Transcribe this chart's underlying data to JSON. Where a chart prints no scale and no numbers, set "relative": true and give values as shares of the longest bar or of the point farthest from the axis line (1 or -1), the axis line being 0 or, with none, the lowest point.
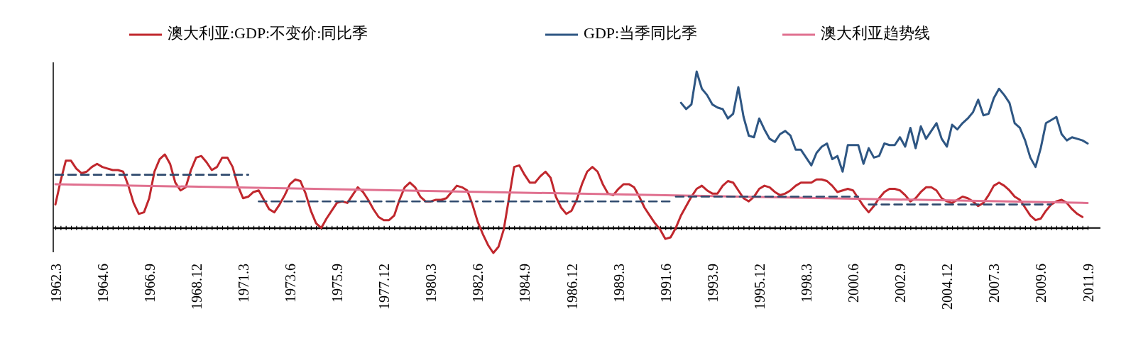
{
  "chart_data": {
    "type": "line",
    "relative": true,
    "legend": "top",
    "tick_labels": "x",
    "categories": [
      "1962.3",
      null,
      null,
      null,
      null,
      null,
      null,
      null,
      null,
      "1964.6",
      null,
      null,
      null,
      null,
      null,
      null,
      null,
      null,
      "1966.9",
      null,
      null,
      null,
      null,
      null,
      null,
      null,
      null,
      "1968.12",
      null,
      null,
      null,
      null,
      null,
      null,
      null,
      null,
      "1971.3",
      null,
      null,
      null,
      null,
      null,
      null,
      null,
      null,
      "1973.6",
      null,
      null,
      null,
      null,
      null,
      null,
      null,
      null,
      "1975.9",
      null,
      null,
      null,
      null,
      null,
      null,
      null,
      null,
      "1977.12",
      null,
      null,
      null,
      null,
      null,
      null,
      null,
      null,
      "1980.3",
      null,
      null,
      null,
      null,
      null,
      null,
      null,
      null,
      "1982.6",
      null,
      null,
      null,
      null,
      null,
      null,
      null,
      null,
      "1984.9",
      null,
      null,
      null,
      null,
      null,
      null,
      null,
      null,
      "1986.12",
      null,
      null,
      null,
      null,
      null,
      null,
      null,
      null,
      "1989.3",
      null,
      null,
      null,
      null,
      null,
      null,
      null,
      null,
      "1991.6",
      null,
      null,
      null,
      null,
      null,
      null,
      null,
      null,
      "1993.9",
      null,
      null,
      null,
      null,
      null,
      null,
      null,
      null,
      "1995.12",
      null,
      null,
      null,
      null,
      null,
      null,
      null,
      null,
      "1998.3",
      null,
      null,
      null,
      null,
      null,
      null,
      null,
      null,
      "2000.6",
      null,
      null,
      null,
      null,
      null,
      null,
      null,
      null,
      "2002.9",
      null,
      null,
      null,
      null,
      null,
      null,
      null,
      null,
      "2004.12",
      null,
      null,
      null,
      null,
      null,
      null,
      null,
      null,
      "2007.3",
      null,
      null,
      null,
      null,
      null,
      null,
      null,
      null,
      "2009.6",
      null,
      null,
      null,
      null,
      null,
      null,
      null,
      null,
      "2011.9"
    ],
    "series": [
      {
        "name": "澳大利亚:GDP:不变价:同比季",
        "color": "#c0272d",
        "line_style": "solid",
        "values": [
          0.15,
          0.3,
          0.43,
          0.43,
          0.38,
          0.35,
          0.36,
          0.39,
          0.41,
          0.39,
          0.38,
          0.37,
          0.37,
          0.36,
          0.27,
          0.16,
          0.09,
          0.1,
          0.19,
          0.36,
          0.44,
          0.47,
          0.41,
          0.29,
          0.24,
          0.26,
          0.37,
          0.45,
          0.46,
          0.42,
          0.37,
          0.39,
          0.45,
          0.45,
          0.39,
          0.27,
          0.19,
          0.2,
          0.23,
          0.24,
          0.18,
          0.12,
          0.1,
          0.15,
          0.21,
          0.28,
          0.31,
          0.3,
          0.22,
          0.11,
          0.03,
          0.0,
          0.06,
          0.11,
          0.16,
          0.17,
          0.16,
          0.21,
          0.26,
          0.23,
          0.18,
          0.12,
          0.07,
          0.05,
          0.05,
          0.08,
          0.18,
          0.26,
          0.29,
          0.26,
          0.2,
          0.17,
          0.17,
          0.18,
          0.18,
          0.19,
          0.23,
          0.27,
          0.26,
          0.24,
          0.15,
          0.04,
          -0.04,
          -0.11,
          -0.16,
          -0.12,
          -0.01,
          0.19,
          0.39,
          0.4,
          0.34,
          0.29,
          0.29,
          0.33,
          0.36,
          0.32,
          0.2,
          0.13,
          0.09,
          0.11,
          0.18,
          0.28,
          0.36,
          0.39,
          0.36,
          0.28,
          0.22,
          0.21,
          0.25,
          0.28,
          0.28,
          0.26,
          0.2,
          0.13,
          0.08,
          0.03,
          -0.01,
          -0.07,
          -0.06,
          0.0,
          0.08,
          0.14,
          0.2,
          0.25,
          0.27,
          0.24,
          0.22,
          0.22,
          0.27,
          0.3,
          0.29,
          0.24,
          0.19,
          0.17,
          0.2,
          0.25,
          0.27,
          0.26,
          0.23,
          0.21,
          0.22,
          0.24,
          0.27,
          0.29,
          0.29,
          0.29,
          0.31,
          0.31,
          0.3,
          0.27,
          0.23,
          0.24,
          0.25,
          0.24,
          0.19,
          0.14,
          0.1,
          0.14,
          0.19,
          0.23,
          0.25,
          0.25,
          0.24,
          0.21,
          0.17,
          0.19,
          0.23,
          0.26,
          0.26,
          0.24,
          0.19,
          0.17,
          0.16,
          0.18,
          0.2,
          0.19,
          0.17,
          0.14,
          0.16,
          0.21,
          0.27,
          0.29,
          0.27,
          0.24,
          0.2,
          0.18,
          0.13,
          0.08,
          0.05,
          0.06,
          0.11,
          0.15,
          0.17,
          0.18,
          0.16,
          0.12,
          0.09,
          0.07,
          null
        ]
      },
      {
        "name": "GDP:当季同比季",
        "color": "#2e5683",
        "line_style": "solid",
        "values": [
          null,
          null,
          null,
          null,
          null,
          null,
          null,
          null,
          null,
          null,
          null,
          null,
          null,
          null,
          null,
          null,
          null,
          null,
          null,
          null,
          null,
          null,
          null,
          null,
          null,
          null,
          null,
          null,
          null,
          null,
          null,
          null,
          null,
          null,
          null,
          null,
          null,
          null,
          null,
          null,
          null,
          null,
          null,
          null,
          null,
          null,
          null,
          null,
          null,
          null,
          null,
          null,
          null,
          null,
          null,
          null,
          null,
          null,
          null,
          null,
          null,
          null,
          null,
          null,
          null,
          null,
          null,
          null,
          null,
          null,
          null,
          null,
          null,
          null,
          null,
          null,
          null,
          null,
          null,
          null,
          null,
          null,
          null,
          null,
          null,
          null,
          null,
          null,
          null,
          null,
          null,
          null,
          null,
          null,
          null,
          null,
          null,
          null,
          null,
          null,
          null,
          null,
          null,
          null,
          null,
          null,
          null,
          null,
          null,
          null,
          null,
          null,
          null,
          null,
          null,
          null,
          null,
          null,
          null,
          null,
          0.8,
          0.76,
          0.79,
          1.0,
          0.89,
          0.85,
          0.79,
          0.77,
          0.76,
          0.7,
          0.73,
          0.9,
          0.71,
          0.59,
          0.58,
          0.7,
          0.63,
          0.57,
          0.55,
          0.6,
          0.62,
          0.59,
          0.5,
          0.5,
          0.45,
          0.4,
          0.48,
          0.52,
          0.54,
          0.44,
          0.46,
          0.36,
          0.53,
          0.53,
          0.53,
          0.41,
          0.51,
          0.45,
          0.46,
          0.54,
          0.53,
          0.53,
          0.58,
          0.52,
          0.64,
          0.51,
          0.65,
          0.57,
          0.62,
          0.67,
          0.57,
          0.52,
          0.66,
          0.63,
          0.67,
          0.7,
          0.74,
          0.82,
          0.72,
          0.73,
          0.83,
          0.89,
          0.85,
          0.8,
          0.67,
          0.64,
          0.56,
          0.45,
          0.39,
          0.51,
          0.67,
          0.69,
          0.71,
          0.6,
          0.56,
          0.58,
          0.57,
          0.56,
          0.54
        ]
      },
      {
        "name": "澳大利亚趋势线",
        "color": "#e0708f",
        "line_style": "solid",
        "values": [
          0.28,
          null,
          null,
          null,
          null,
          null,
          null,
          null,
          null,
          null,
          null,
          null,
          null,
          null,
          null,
          null,
          null,
          null,
          null,
          null,
          null,
          null,
          null,
          null,
          null,
          null,
          null,
          null,
          null,
          null,
          null,
          null,
          null,
          null,
          null,
          null,
          null,
          null,
          null,
          null,
          null,
          null,
          null,
          null,
          null,
          null,
          null,
          null,
          null,
          null,
          null,
          null,
          null,
          null,
          null,
          null,
          null,
          null,
          null,
          null,
          null,
          null,
          null,
          null,
          null,
          null,
          null,
          null,
          null,
          null,
          null,
          null,
          null,
          null,
          null,
          null,
          null,
          null,
          null,
          null,
          null,
          null,
          null,
          null,
          null,
          null,
          null,
          null,
          null,
          null,
          null,
          null,
          null,
          null,
          null,
          null,
          null,
          null,
          null,
          null,
          null,
          null,
          null,
          null,
          null,
          null,
          null,
          null,
          null,
          null,
          null,
          null,
          null,
          null,
          null,
          null,
          null,
          null,
          null,
          null,
          null,
          null,
          null,
          null,
          null,
          null,
          null,
          null,
          null,
          null,
          null,
          null,
          null,
          null,
          null,
          null,
          null,
          null,
          null,
          null,
          null,
          null,
          null,
          null,
          null,
          null,
          null,
          null,
          null,
          null,
          null,
          null,
          null,
          null,
          null,
          null,
          null,
          null,
          null,
          null,
          null,
          null,
          null,
          null,
          null,
          null,
          null,
          null,
          null,
          null,
          null,
          null,
          null,
          null,
          null,
          null,
          null,
          null,
          null,
          null,
          null,
          null,
          null,
          null,
          null,
          null,
          null,
          null,
          null,
          null,
          null,
          null,
          null,
          null,
          null,
          null,
          null,
          null,
          0.16
        ]
      },
      {
        "color": "#2f4a6e",
        "line_style": "dashed",
        "values": [
          0.34,
          null,
          null,
          null,
          null,
          null,
          null,
          null,
          null,
          null,
          null,
          null,
          null,
          null,
          null,
          null,
          null,
          null,
          null,
          null,
          null,
          null,
          null,
          null,
          null,
          null,
          null,
          null,
          null,
          null,
          null,
          null,
          null,
          null,
          null,
          null,
          null,
          0.34,
          null,
          null,
          null,
          null,
          null,
          null,
          null,
          null,
          null,
          null,
          null,
          null,
          null,
          null,
          null,
          null,
          null,
          null,
          null,
          null,
          null,
          null,
          null,
          null,
          null,
          null,
          null,
          null,
          null,
          null,
          null,
          null,
          null,
          null,
          null,
          null,
          null,
          null,
          null,
          null,
          null,
          null,
          null,
          null,
          null,
          null,
          null,
          null,
          null,
          null,
          null,
          null,
          null,
          null,
          null,
          null,
          null,
          null,
          null,
          null,
          null,
          null,
          null,
          null,
          null,
          null,
          null,
          null,
          null,
          null,
          null,
          null,
          null,
          null,
          null,
          null,
          null,
          null,
          null,
          null,
          null,
          null,
          null,
          null,
          null,
          null,
          null,
          null,
          null,
          null,
          null,
          null,
          null,
          null,
          null,
          null,
          null,
          null,
          null,
          null,
          null,
          null,
          null,
          null,
          null,
          null,
          null,
          null,
          null,
          null,
          null,
          null,
          null,
          null,
          null,
          null,
          null,
          null,
          null,
          null,
          null,
          null,
          null,
          null,
          null,
          null,
          null,
          null,
          null,
          null,
          null,
          null,
          null,
          null,
          null,
          null,
          null,
          null,
          null,
          null,
          null,
          null,
          null,
          null,
          null,
          null,
          null,
          null,
          null,
          null,
          null,
          null,
          null,
          null,
          null,
          null,
          null,
          null,
          null,
          null,
          null
        ]
      },
      {
        "color": "#2f4a6e",
        "line_style": "dashed",
        "values": [
          null,
          null,
          null,
          null,
          null,
          null,
          null,
          null,
          null,
          null,
          null,
          null,
          null,
          null,
          null,
          null,
          null,
          null,
          null,
          null,
          null,
          null,
          null,
          null,
          null,
          null,
          null,
          null,
          null,
          null,
          null,
          null,
          null,
          null,
          null,
          null,
          null,
          null,
          null,
          0.17,
          null,
          null,
          null,
          null,
          null,
          null,
          null,
          null,
          null,
          null,
          null,
          null,
          null,
          null,
          null,
          null,
          null,
          null,
          null,
          null,
          null,
          null,
          null,
          null,
          null,
          null,
          null,
          null,
          null,
          null,
          null,
          null,
          null,
          null,
          null,
          null,
          null,
          null,
          null,
          null,
          null,
          0.17,
          null,
          null,
          null,
          null,
          null,
          null,
          null,
          null,
          null,
          null,
          null,
          null,
          null,
          null,
          null,
          null,
          null,
          null,
          null,
          null,
          null,
          null,
          null,
          null,
          null,
          null,
          null,
          null,
          null,
          null,
          null,
          null,
          null,
          null,
          null,
          null,
          null,
          null,
          null,
          null,
          null,
          null,
          null,
          null,
          null,
          null,
          null,
          null,
          null,
          null,
          null,
          null,
          null,
          null,
          null,
          null,
          null,
          null,
          null,
          null,
          null,
          null,
          null,
          null,
          null,
          null,
          null,
          null,
          null,
          null,
          null,
          null,
          null,
          null,
          null,
          null,
          null,
          null,
          null,
          null,
          null,
          null,
          null,
          null,
          null,
          null,
          null,
          null,
          null,
          null,
          null,
          null,
          null,
          null,
          null,
          null,
          null,
          null,
          null,
          null,
          null,
          null,
          null,
          null,
          null,
          null,
          null,
          null,
          null,
          null,
          null,
          null,
          null,
          null,
          null,
          null,
          null
        ]
      },
      {
        "color": "#2f4a6e",
        "line_style": "dashed",
        "values": [
          null,
          null,
          null,
          null,
          null,
          null,
          null,
          null,
          null,
          null,
          null,
          null,
          null,
          null,
          null,
          null,
          null,
          null,
          null,
          null,
          null,
          null,
          null,
          null,
          null,
          null,
          null,
          null,
          null,
          null,
          null,
          null,
          null,
          null,
          null,
          null,
          null,
          null,
          null,
          null,
          null,
          null,
          null,
          null,
          null,
          null,
          null,
          null,
          null,
          null,
          null,
          null,
          null,
          null,
          null,
          null,
          null,
          null,
          null,
          null,
          null,
          null,
          null,
          null,
          null,
          null,
          null,
          null,
          null,
          null,
          null,
          null,
          null,
          null,
          null,
          null,
          null,
          null,
          null,
          null,
          null,
          null,
          0.17,
          null,
          null,
          null,
          null,
          null,
          null,
          null,
          null,
          null,
          null,
          null,
          null,
          null,
          null,
          null,
          null,
          null,
          null,
          null,
          null,
          null,
          null,
          null,
          null,
          null,
          null,
          null,
          null,
          null,
          null,
          null,
          null,
          null,
          null,
          null,
          0.17,
          null,
          null,
          null,
          null,
          null,
          null,
          null,
          null,
          null,
          null,
          null,
          null,
          null,
          null,
          null,
          null,
          null,
          null,
          null,
          null,
          null,
          null,
          null,
          null,
          null,
          null,
          null,
          null,
          null,
          null,
          null,
          null,
          null,
          null,
          null,
          null,
          null,
          null,
          null,
          null,
          null,
          null,
          null,
          null,
          null,
          null,
          null,
          null,
          null,
          null,
          null,
          null,
          null,
          null,
          null,
          null,
          null,
          null,
          null,
          null,
          null,
          null,
          null,
          null,
          null,
          null,
          null,
          null,
          null,
          null,
          null,
          null,
          null,
          null,
          null,
          null,
          null,
          null,
          null,
          null
        ]
      },
      {
        "color": "#2f4a6e",
        "line_style": "dashed",
        "values": [
          null,
          null,
          null,
          null,
          null,
          null,
          null,
          null,
          null,
          null,
          null,
          null,
          null,
          null,
          null,
          null,
          null,
          null,
          null,
          null,
          null,
          null,
          null,
          null,
          null,
          null,
          null,
          null,
          null,
          null,
          null,
          null,
          null,
          null,
          null,
          null,
          null,
          null,
          null,
          null,
          null,
          null,
          null,
          null,
          null,
          null,
          null,
          null,
          null,
          null,
          null,
          null,
          null,
          null,
          null,
          null,
          null,
          null,
          null,
          null,
          null,
          null,
          null,
          null,
          null,
          null,
          null,
          null,
          null,
          null,
          null,
          null,
          null,
          null,
          null,
          null,
          null,
          null,
          null,
          null,
          null,
          null,
          null,
          null,
          null,
          null,
          null,
          null,
          null,
          null,
          null,
          null,
          null,
          null,
          null,
          null,
          null,
          null,
          null,
          null,
          null,
          null,
          null,
          null,
          null,
          null,
          null,
          null,
          null,
          null,
          null,
          null,
          null,
          null,
          null,
          null,
          null,
          null,
          null,
          0.2,
          null,
          null,
          null,
          null,
          null,
          null,
          null,
          null,
          null,
          null,
          null,
          null,
          null,
          null,
          null,
          null,
          null,
          null,
          null,
          null,
          null,
          null,
          null,
          null,
          null,
          null,
          null,
          null,
          null,
          null,
          null,
          null,
          null,
          null,
          0.2,
          null,
          null,
          null,
          null,
          null,
          null,
          null,
          null,
          null,
          null,
          null,
          null,
          null,
          null,
          null,
          null,
          null,
          null,
          null,
          null,
          null,
          null,
          null,
          null,
          null,
          null,
          null,
          null,
          null,
          null,
          null,
          null,
          null,
          null,
          null,
          null,
          null,
          null,
          null,
          null,
          null,
          null,
          null,
          null
        ]
      },
      {
        "color": "#2f4a6e",
        "line_style": "dashed",
        "values": [
          null,
          null,
          null,
          null,
          null,
          null,
          null,
          null,
          null,
          null,
          null,
          null,
          null,
          null,
          null,
          null,
          null,
          null,
          null,
          null,
          null,
          null,
          null,
          null,
          null,
          null,
          null,
          null,
          null,
          null,
          null,
          null,
          null,
          null,
          null,
          null,
          null,
          null,
          null,
          null,
          null,
          null,
          null,
          null,
          null,
          null,
          null,
          null,
          null,
          null,
          null,
          null,
          null,
          null,
          null,
          null,
          null,
          null,
          null,
          null,
          null,
          null,
          null,
          null,
          null,
          null,
          null,
          null,
          null,
          null,
          null,
          null,
          null,
          null,
          null,
          null,
          null,
          null,
          null,
          null,
          null,
          null,
          null,
          null,
          null,
          null,
          null,
          null,
          null,
          null,
          null,
          null,
          null,
          null,
          null,
          null,
          null,
          null,
          null,
          null,
          null,
          null,
          null,
          null,
          null,
          null,
          null,
          null,
          null,
          null,
          null,
          null,
          null,
          null,
          null,
          null,
          null,
          null,
          null,
          null,
          null,
          null,
          null,
          null,
          null,
          null,
          null,
          null,
          null,
          null,
          null,
          null,
          null,
          null,
          null,
          null,
          null,
          null,
          null,
          null,
          null,
          null,
          null,
          null,
          null,
          null,
          null,
          null,
          null,
          null,
          null,
          null,
          null,
          null,
          null,
          null,
          0.15,
          null,
          null,
          null,
          null,
          null,
          null,
          null,
          null,
          null,
          null,
          null,
          null,
          null,
          null,
          null,
          null,
          null,
          null,
          null,
          null,
          null,
          null,
          null,
          null,
          null,
          null,
          null,
          null,
          null,
          null,
          null,
          null,
          null,
          null,
          0.15,
          null,
          null,
          null,
          null,
          null,
          null,
          null
        ]
      }
    ]
  }
}
